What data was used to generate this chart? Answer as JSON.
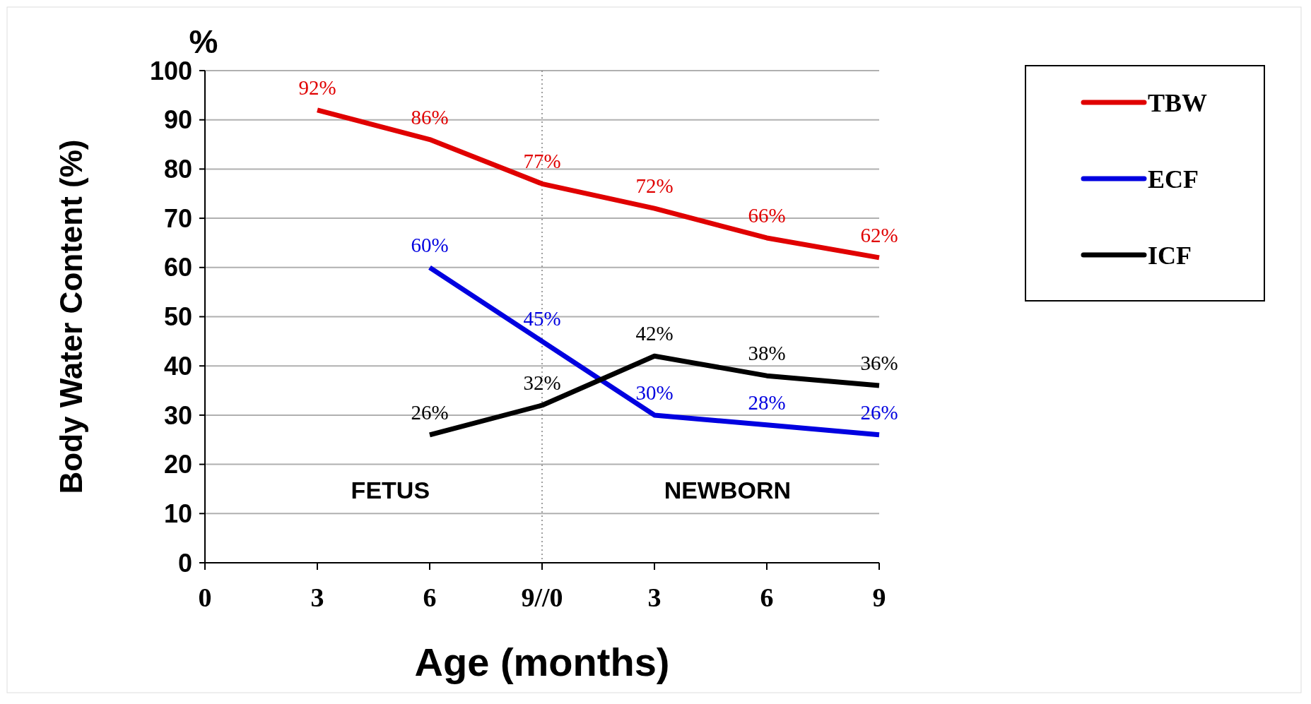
{
  "chart_data": {
    "type": "line",
    "ylabel": "Body Water Content (%)",
    "xlabel": "Age (months)",
    "categories": [
      "0",
      "3",
      "6",
      "9//0",
      "3",
      "6",
      "9"
    ],
    "series": [
      {
        "name": "TBW",
        "color": "#e00000",
        "values": [
          null,
          92,
          86,
          77,
          72,
          66,
          62
        ],
        "value_labels": [
          null,
          "92%",
          "86%",
          "77%",
          "72%",
          "66%",
          "62%"
        ]
      },
      {
        "name": "ECF",
        "color": "#0000e0",
        "values": [
          null,
          null,
          60,
          45,
          30,
          28,
          26
        ],
        "value_labels": [
          null,
          null,
          "60%",
          "45%",
          "30%",
          "28%",
          "26%"
        ]
      },
      {
        "name": "ICF",
        "color": "#000000",
        "values": [
          null,
          null,
          26,
          32,
          42,
          38,
          36
        ],
        "value_labels": [
          null,
          null,
          "26%",
          "32%",
          "42%",
          "38%",
          "36%"
        ]
      }
    ],
    "ylim": [
      0,
      100
    ],
    "yticks": [
      0,
      10,
      20,
      30,
      40,
      50,
      60,
      70,
      80,
      90,
      100
    ],
    "grid": "y",
    "legend": "top right",
    "marker": "none",
    "line_style": "solid",
    "ref_lines": [
      {
        "axis": "x",
        "value": "9//0",
        "color": "#808080",
        "line_style": "dotted"
      }
    ],
    "annotations": [
      "%",
      "FETUS",
      "NEWBORN"
    ]
  }
}
